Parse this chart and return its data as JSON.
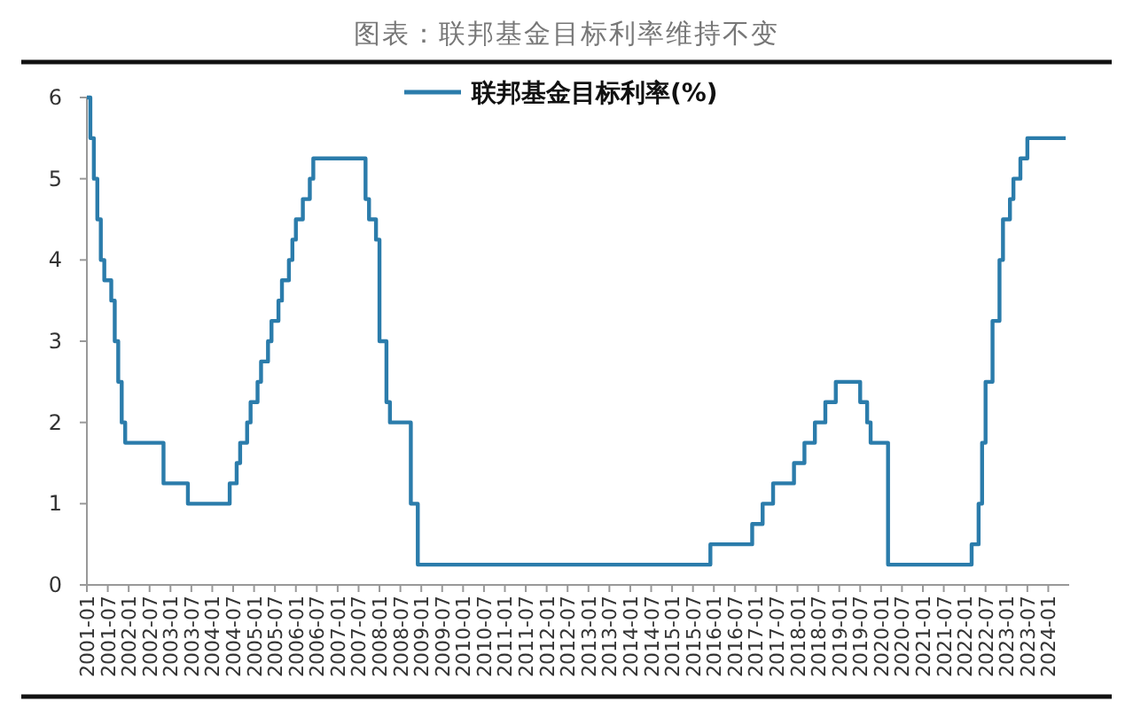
{
  "chart_data": {
    "type": "step",
    "title": "图表：联邦基金目标利率维持不变",
    "legend": "top",
    "xlim": [
      "2001-01",
      "2024-07"
    ],
    "xticks": [
      "2001-01",
      "2001-07",
      "2002-01",
      "2002-07",
      "2003-01",
      "2003-07",
      "2004-01",
      "2004-07",
      "2005-01",
      "2005-07",
      "2006-01",
      "2006-07",
      "2007-01",
      "2007-07",
      "2008-01",
      "2008-07",
      "2009-01",
      "2009-07",
      "2010-01",
      "2010-07",
      "2011-01",
      "2011-07",
      "2012-01",
      "2012-07",
      "2013-01",
      "2013-07",
      "2014-01",
      "2014-07",
      "2015-01",
      "2015-07",
      "2016-01",
      "2016-07",
      "2017-01",
      "2017-07",
      "2018-01",
      "2018-07",
      "2019-01",
      "2019-07",
      "2020-01",
      "2020-07",
      "2021-01",
      "2021-07",
      "2022-01",
      "2022-07",
      "2023-01",
      "2023-07",
      "2024-01"
    ],
    "ylim": [
      0,
      6
    ],
    "yticks": [
      0,
      1,
      2,
      3,
      4,
      5,
      6
    ],
    "grid": false,
    "series": [
      {
        "name": "联邦基金目标利率(%)",
        "color": "#2b7cab",
        "x": [
          "2001-01",
          "2001-02",
          "2001-03",
          "2001-04",
          "2001-05",
          "2001-06",
          "2001-08",
          "2001-09",
          "2001-10",
          "2001-11",
          "2001-12",
          "2002-11",
          "2003-06",
          "2004-06",
          "2004-08",
          "2004-09",
          "2004-11",
          "2004-12",
          "2005-02",
          "2005-03",
          "2005-05",
          "2005-06",
          "2005-08",
          "2005-09",
          "2005-11",
          "2005-12",
          "2006-01",
          "2006-03",
          "2006-05",
          "2006-06",
          "2007-09",
          "2007-10",
          "2007-12",
          "2008-01",
          "2008-03",
          "2008-04",
          "2008-10",
          "2008-12",
          "2015-12",
          "2016-12",
          "2017-03",
          "2017-06",
          "2017-12",
          "2018-03",
          "2018-06",
          "2018-09",
          "2018-12",
          "2019-07",
          "2019-09",
          "2019-10",
          "2020-03",
          "2022-03",
          "2022-05",
          "2022-06",
          "2022-07",
          "2022-09",
          "2022-11",
          "2022-12",
          "2023-02",
          "2023-03",
          "2023-05",
          "2023-07",
          "2024-06"
        ],
        "values": [
          6,
          5.5,
          5,
          4.5,
          4,
          3.75,
          3.5,
          3,
          2.5,
          2,
          1.75,
          1.25,
          1,
          1.25,
          1.5,
          1.75,
          2,
          2.25,
          2.5,
          2.75,
          3,
          3.25,
          3.5,
          3.75,
          4,
          4.25,
          4.5,
          4.75,
          5,
          5.25,
          4.75,
          4.5,
          4.25,
          3,
          2.25,
          2,
          1,
          0.25,
          0.5,
          0.75,
          1,
          1.25,
          1.5,
          1.75,
          2,
          2.25,
          2.5,
          2.25,
          2,
          1.75,
          0.25,
          0.5,
          1,
          1.75,
          2.5,
          3.25,
          4,
          4.5,
          4.75,
          5,
          5.25,
          5.5,
          5.5
        ]
      }
    ]
  }
}
